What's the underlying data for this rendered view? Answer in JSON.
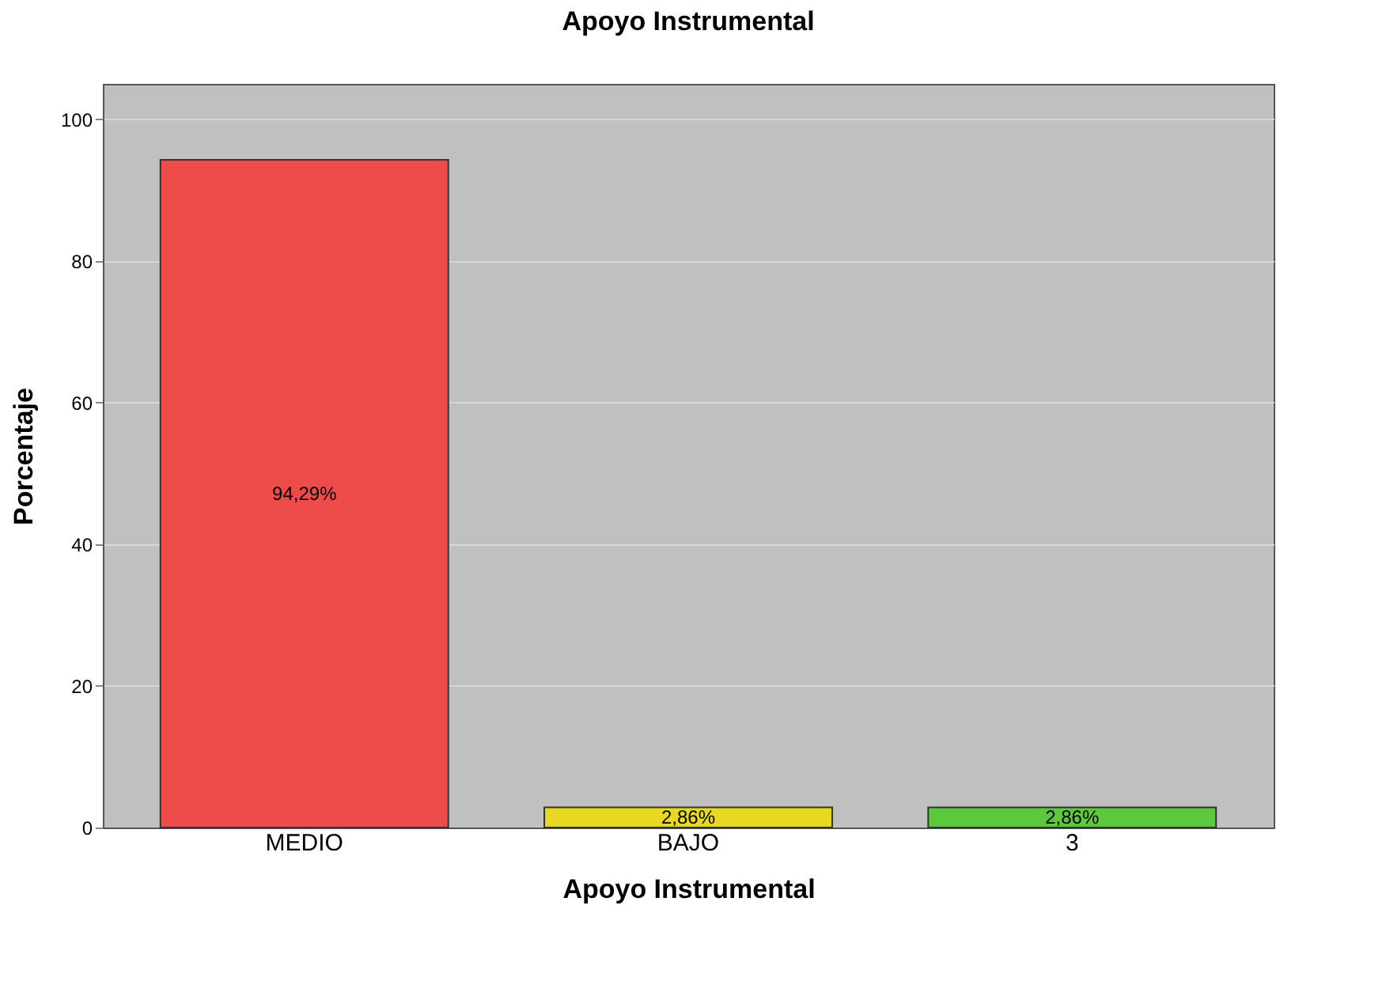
{
  "chart_data": {
    "type": "bar",
    "title": "Apoyo Instrumental",
    "xlabel": "Apoyo Instrumental",
    "ylabel": "Porcentaje",
    "categories": [
      "MEDIO",
      "BAJO",
      "3"
    ],
    "values": [
      94.29,
      2.86,
      2.86
    ],
    "colors": [
      "#ee4b4b",
      "#e8d820",
      "#5cc83c"
    ],
    "value_labels": [
      "94,29%",
      "2,86%",
      "2,86%"
    ],
    "ylim": [
      0,
      105
    ],
    "yticks": [
      0,
      20,
      40,
      60,
      80,
      100
    ],
    "grid": "y"
  }
}
